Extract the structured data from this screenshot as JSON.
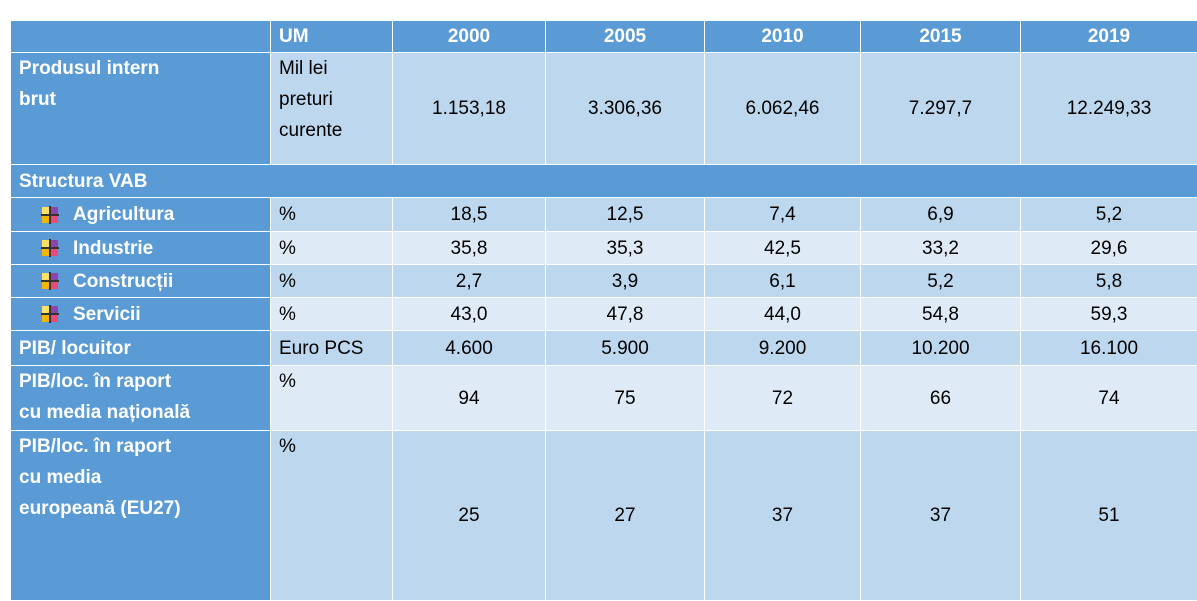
{
  "table": {
    "header": [
      "",
      "UM",
      "2000",
      "2005",
      "2010",
      "2015",
      "2019"
    ],
    "rows": [
      {
        "label": [
          "Produsul intern",
          "brut"
        ],
        "um": [
          "Mil lei",
          "preturi",
          "curente"
        ],
        "values": [
          "1.153,18",
          "3.306,36",
          "6.062,46",
          "7.297,7",
          "12.249,33"
        ]
      },
      {
        "label": [
          "Structura VAB"
        ]
      },
      {
        "label": [
          "Agricultura"
        ],
        "um": [
          "%"
        ],
        "values": [
          "18,5",
          "12,5",
          "7,4",
          "6,9",
          "5,2"
        ],
        "sub": true
      },
      {
        "label": [
          "Industrie"
        ],
        "um": [
          "%"
        ],
        "values": [
          "35,8",
          "35,3",
          "42,5",
          "33,2",
          "29,6"
        ],
        "sub": true
      },
      {
        "label": [
          "Construcții"
        ],
        "um": [
          "%"
        ],
        "values": [
          "2,7",
          "3,9",
          "6,1",
          "5,2",
          "5,8"
        ],
        "sub": true
      },
      {
        "label": [
          "Servicii"
        ],
        "um": [
          "%"
        ],
        "values": [
          "43,0",
          "47,8",
          "44,0",
          "54,8",
          "59,3"
        ],
        "sub": true
      },
      {
        "label": [
          "PIB/ locuitor"
        ],
        "um": [
          "Euro PCS"
        ],
        "values": [
          "4.600",
          "5.900",
          "9.200",
          "10.200",
          "16.100"
        ]
      },
      {
        "label": [
          "PIB/loc. în raport",
          "cu media națională"
        ],
        "um": [
          "%"
        ],
        "values": [
          "94",
          "75",
          "72",
          "66",
          "74"
        ]
      },
      {
        "label": [
          "PIB/loc. în raport",
          "cu media",
          "europeană (EU27)"
        ],
        "um": [
          "%"
        ],
        "values": [
          "25",
          "27",
          "37",
          "37",
          "51"
        ]
      }
    ]
  }
}
